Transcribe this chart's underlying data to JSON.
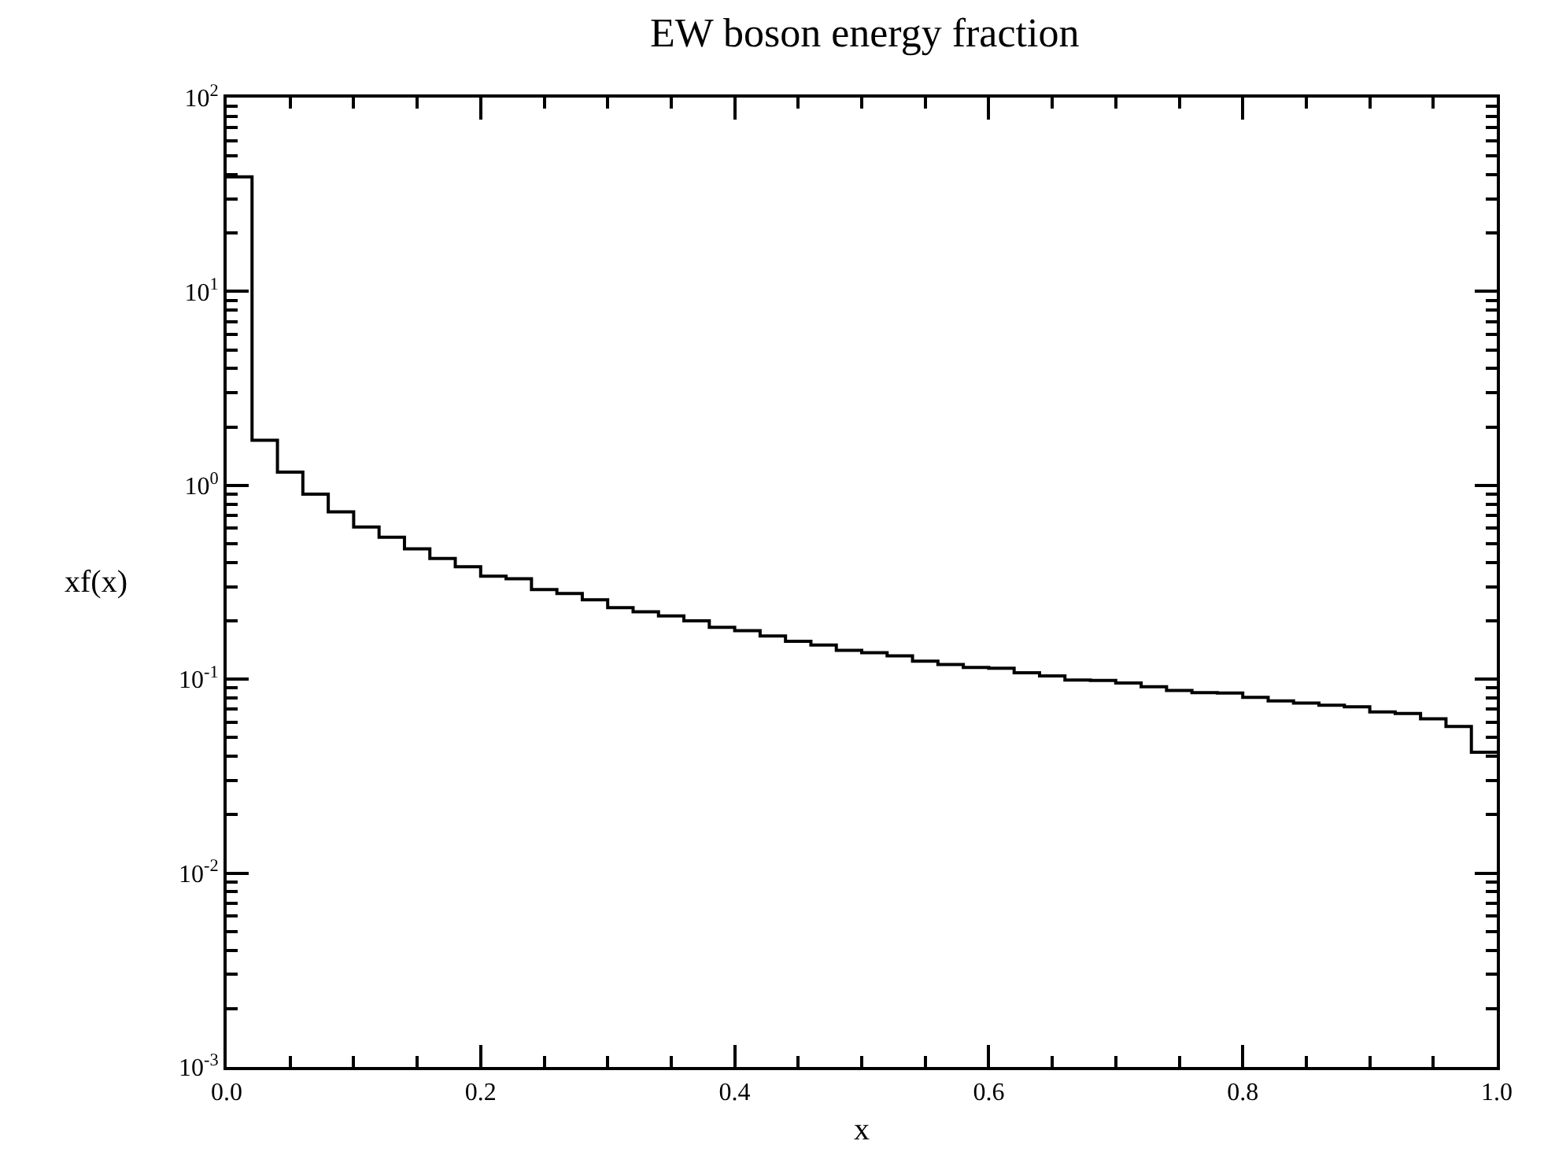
{
  "chart_data": {
    "type": "histogram",
    "title": "EW boson energy fraction",
    "xlabel": "x",
    "ylabel": "xf(x)",
    "bins": [
      0,
      0.02,
      0.04,
      0.06,
      0.08,
      0.1,
      0.12,
      0.14,
      0.16,
      0.18,
      0.2,
      0.22,
      0.24,
      0.26,
      0.28,
      0.3,
      0.32,
      0.34,
      0.36,
      0.38,
      0.4,
      0.42,
      0.44,
      0.46,
      0.48,
      0.5,
      0.52,
      0.54,
      0.56,
      0.58,
      0.6,
      0.62,
      0.64,
      0.66,
      0.68,
      0.7,
      0.72,
      0.74,
      0.76,
      0.78,
      0.8,
      0.82,
      0.84,
      0.86,
      0.88,
      0.9,
      0.92,
      0.94,
      0.96,
      0.98,
      1.0
    ],
    "values": [
      39,
      1.71,
      1.17,
      0.9,
      0.73,
      0.61,
      0.54,
      0.47,
      0.42,
      0.38,
      0.34,
      0.33,
      0.29,
      0.277,
      0.257,
      0.234,
      0.223,
      0.212,
      0.2,
      0.185,
      0.178,
      0.167,
      0.157,
      0.15,
      0.141,
      0.137,
      0.132,
      0.124,
      0.119,
      0.115,
      0.114,
      0.108,
      0.104,
      0.099,
      0.0985,
      0.0955,
      0.0915,
      0.0875,
      0.0853,
      0.0849,
      0.0807,
      0.0773,
      0.0754,
      0.0735,
      0.0721,
      0.0678,
      0.0665,
      0.0625,
      0.057,
      0.042
    ],
    "color": "#000000",
    "log": "y",
    "xlim": [
      0,
      1
    ],
    "xticks": [
      {
        "value": 0,
        "label": "0.0"
      },
      0.2,
      0.4,
      0.6,
      0.8,
      {
        "value": 1,
        "label": "1.0"
      }
    ],
    "ylim": [
      0.001,
      100
    ],
    "yticks": [
      {
        "value": 0.001,
        "label": "10$^{-3}$"
      },
      {
        "value": 0.01,
        "label": "10$^{-2}$"
      },
      {
        "value": 0.1,
        "label": "10$^{-1}$"
      },
      {
        "value": 1,
        "label": "10$^{0}$"
      },
      {
        "value": 10,
        "label": "10$^{1}$"
      },
      {
        "value": 100,
        "label": "10$^{2}$"
      }
    ]
  }
}
